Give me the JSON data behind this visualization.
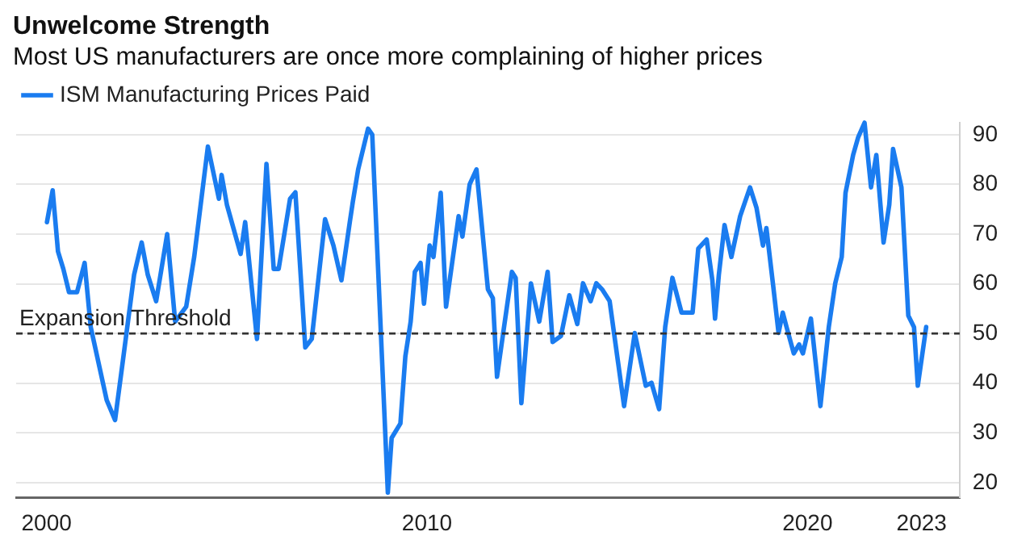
{
  "chart_data": {
    "type": "line",
    "title": "Unwelcome Strength",
    "subtitle": "Most US manufacturers are once more complaining of higher prices",
    "x": [
      2000.01,
      2000.16,
      2000.3,
      2000.44,
      2000.59,
      2000.8,
      2001.0,
      2001.16,
      2001.58,
      2001.8,
      2002.0,
      2002.3,
      2002.5,
      2002.66,
      2002.88,
      2003.17,
      2003.38,
      2003.67,
      2003.88,
      2004.24,
      2004.53,
      2004.6,
      2004.74,
      2005.1,
      2005.22,
      2005.53,
      2005.78,
      2005.97,
      2006.1,
      2006.4,
      2006.54,
      2006.8,
      2006.97,
      2007.32,
      2007.54,
      2007.75,
      2007.97,
      2008.05,
      2008.19,
      2008.45,
      2008.56,
      2008.97,
      2009.07,
      2009.3,
      2009.43,
      2009.57,
      2009.68,
      2009.83,
      2009.92,
      2010.07,
      2010.17,
      2010.36,
      2010.5,
      2010.83,
      2010.93,
      2011.12,
      2011.3,
      2011.6,
      2011.73,
      2011.84,
      2011.98,
      2012.23,
      2012.33,
      2012.48,
      2012.73,
      2012.95,
      2013.17,
      2013.3,
      2013.52,
      2013.74,
      2013.95,
      2014.1,
      2014.3,
      2014.45,
      2014.6,
      2014.8,
      2015.18,
      2015.46,
      2015.75,
      2015.9,
      2016.1,
      2016.26,
      2016.45,
      2016.69,
      2016.98,
      2017.13,
      2017.35,
      2017.5,
      2017.57,
      2017.67,
      2017.82,
      2018.0,
      2018.23,
      2018.49,
      2018.66,
      2018.83,
      2018.92,
      2019.1,
      2019.24,
      2019.35,
      2019.45,
      2019.64,
      2019.78,
      2019.88,
      2020.09,
      2020.34,
      2020.56,
      2020.73,
      2020.9,
      2021.0,
      2021.2,
      2021.33,
      2021.5,
      2021.67,
      2021.81,
      2022.0,
      2022.15,
      2022.25,
      2022.47,
      2022.65,
      2022.8,
      2022.9,
      2023.12
    ],
    "series": [
      {
        "name": "ISM Manufacturing Prices Paid",
        "color": "#1a7cf0",
        "values": [
          72.4,
          78.8,
          66.5,
          63,
          58.3,
          58.3,
          64.2,
          51.3,
          36.6,
          32.6,
          44.2,
          61.8,
          68.3,
          61.8,
          56.5,
          70,
          52.4,
          55.4,
          65.4,
          87.6,
          77.1,
          81.9,
          75.9,
          66,
          72.4,
          48.9,
          84.1,
          63,
          63,
          77.1,
          78.4,
          47.2,
          48.9,
          73,
          67.7,
          60.7,
          72.4,
          76.5,
          83,
          91.2,
          90,
          18,
          29,
          31.9,
          45.4,
          52.4,
          62.4,
          64.2,
          56,
          67.7,
          65.4,
          78.3,
          55.4,
          73.6,
          69.5,
          80,
          83,
          58.9,
          57.1,
          41.3,
          48.9,
          62.4,
          61.2,
          36,
          60.1,
          52.4,
          62.4,
          48.3,
          49.5,
          57.7,
          51.9,
          60.1,
          56.5,
          60.1,
          58.9,
          56.5,
          35.4,
          50.1,
          39.5,
          40.1,
          34.8,
          51.3,
          61.2,
          54.2,
          54.2,
          67.1,
          68.9,
          60.7,
          53,
          61.8,
          71.8,
          65.4,
          73.6,
          79.4,
          75.3,
          67.7,
          71.2,
          59.5,
          50.1,
          54.2,
          51.3,
          46,
          47.8,
          46,
          53,
          35.4,
          51.3,
          60.1,
          65.4,
          78.3,
          85.9,
          89.4,
          92.4,
          79.4,
          85.9,
          68.3,
          75.9,
          87.1,
          79.4,
          53.6,
          51.3,
          39.5,
          51.3
        ]
      }
    ],
    "xlim": [
      1999.2,
      2024
    ],
    "xticks": [
      2000,
      2010,
      2020,
      2023
    ],
    "ylim": [
      17,
      92.4
    ],
    "yticks": [
      20,
      30,
      40,
      50,
      60,
      70,
      80,
      90
    ],
    "grid": "y",
    "legend": "top left",
    "marker": "none",
    "line_style": "solid",
    "ref_lines": [
      {
        "axis": "y",
        "value": 50,
        "label": "Expansion Threshold",
        "color": "#333333",
        "line_style": "dashed"
      }
    ]
  }
}
